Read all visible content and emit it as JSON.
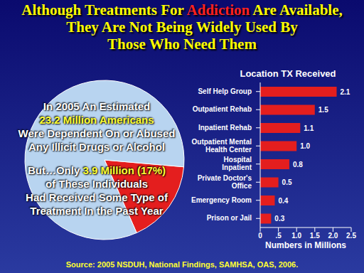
{
  "title_lines": [
    [
      {
        "text": "Although Treatments For ",
        "color": "#ffff00"
      },
      {
        "text": "Addiction",
        "color": "#ff2020"
      },
      {
        "text": " Are Available,",
        "color": "#ffff00"
      }
    ],
    [
      {
        "text": "They Are Not Being Widely Used By",
        "color": "#ffff00"
      }
    ],
    [
      {
        "text": "Those Who Need Them",
        "color": "#ffff00"
      }
    ]
  ],
  "chart_data": [
    {
      "type": "pie",
      "values": [
        17,
        83
      ],
      "colors": [
        "#e41e1e",
        "#b8d4f0"
      ],
      "annotations": [
        [
          [
            {
              "text": "In 2005 An Estimated",
              "color": "#ffffff"
            }
          ],
          [
            {
              "text": "23.2 Million Americans",
              "color": "#ffff33"
            }
          ],
          [
            {
              "text": "Were Dependent On or Abused",
              "color": "#ffffff"
            }
          ],
          [
            {
              "text": "Any Illicit Drugs or Alcohol",
              "color": "#ffffff"
            }
          ]
        ],
        [
          [
            {
              "text": "But…Only ",
              "color": "#ffffff"
            },
            {
              "text": "3.9 Million (17%)",
              "color": "#ffff33"
            }
          ],
          [
            {
              "text": "of These Individuals",
              "color": "#ffffff"
            }
          ],
          [
            {
              "text": "Had Received Some Type of",
              "color": "#ffffff"
            }
          ],
          [
            {
              "text": "Treatment In the Past Year",
              "color": "#ffffff"
            }
          ]
        ]
      ]
    },
    {
      "type": "bar",
      "orientation": "horizontal",
      "title": "Location TX Received",
      "xlabel": "Numbers in Millions",
      "categories": [
        "Self Help Group",
        "Outpatient Rehab",
        "Inpatient Rehab",
        "Outpatient Mental Health Center",
        "Hospital Inpatient",
        "Private Doctor's Office",
        "Emergency Room",
        "Prison or Jail"
      ],
      "values": [
        2.1,
        1.5,
        1.1,
        1.0,
        0.8,
        0.5,
        0.4,
        0.3
      ],
      "value_labels": [
        "2.1",
        "1.5",
        "1.1",
        "1.0",
        "0.8",
        "0.5",
        "0.4",
        "0.3"
      ],
      "data_labels": true,
      "color": "#e41e1e",
      "xlim": [
        0,
        2.5
      ],
      "xticks": [
        0,
        {
          "value": 0.5,
          "label": ".5"
        },
        {
          "value": 1,
          "label": "1.0"
        },
        {
          "value": 1.5,
          "label": "1.5"
        },
        {
          "value": 2,
          "label": "2.0"
        },
        {
          "value": 2.5,
          "label": "2.5"
        }
      ]
    }
  ],
  "source": "Source: 2005 NSDUH, National Findings, SAMHSA, OAS, 2006."
}
